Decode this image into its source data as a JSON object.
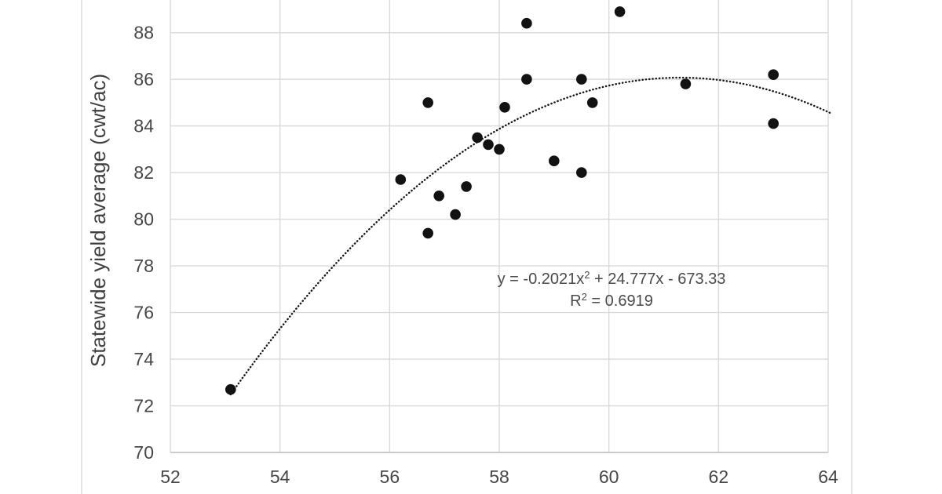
{
  "chart_data": {
    "type": "scatter",
    "title": "",
    "xlabel": "",
    "ylabel": "Statewide yield average (cwt/ac)",
    "xlim": [
      52,
      64
    ],
    "ylim": [
      70,
      89.4
    ],
    "x_ticks": [
      52,
      54,
      56,
      58,
      60,
      62,
      64
    ],
    "y_ticks": [
      70,
      72,
      74,
      76,
      78,
      80,
      82,
      84,
      86,
      88
    ],
    "grid": true,
    "legend_position": "none",
    "points": [
      [
        53.1,
        72.7
      ],
      [
        56.2,
        81.7
      ],
      [
        56.7,
        79.4
      ],
      [
        56.7,
        85.0
      ],
      [
        56.9,
        81.0
      ],
      [
        57.2,
        80.2
      ],
      [
        57.4,
        81.4
      ],
      [
        57.6,
        83.5
      ],
      [
        57.8,
        83.2
      ],
      [
        58.0,
        83.0
      ],
      [
        58.1,
        84.8
      ],
      [
        58.5,
        86.0
      ],
      [
        58.5,
        88.4
      ],
      [
        59.0,
        82.5
      ],
      [
        59.5,
        82.0
      ],
      [
        59.5,
        86.0
      ],
      [
        59.7,
        85.0
      ],
      [
        60.2,
        88.9
      ],
      [
        61.4,
        85.8
      ],
      [
        63.0,
        84.1
      ],
      [
        63.0,
        86.2
      ]
    ],
    "trendline": {
      "style": "dotted",
      "model": "quadratic",
      "a": -0.2021,
      "b": 24.777,
      "c": -673.33,
      "x_start": 53.1,
      "x_end": 64.05,
      "equation_base": "y = -0.2021x",
      "equation_sup": "2",
      "equation_rest": " + 24.777x - 673.33",
      "r2_base": "R",
      "r2_sup": "2",
      "r2_rest": " = 0.6919"
    },
    "colors": {
      "point": "#121212",
      "trendline": "#151515",
      "gridline": "#d9d9d9",
      "axis_line": "#c4c4c4",
      "tick_text": "#474747",
      "axis_title_text": "#3f3f3f",
      "equation_text": "#4a4a4a",
      "border": "#e4e4e4",
      "background": "#ffffff"
    }
  }
}
